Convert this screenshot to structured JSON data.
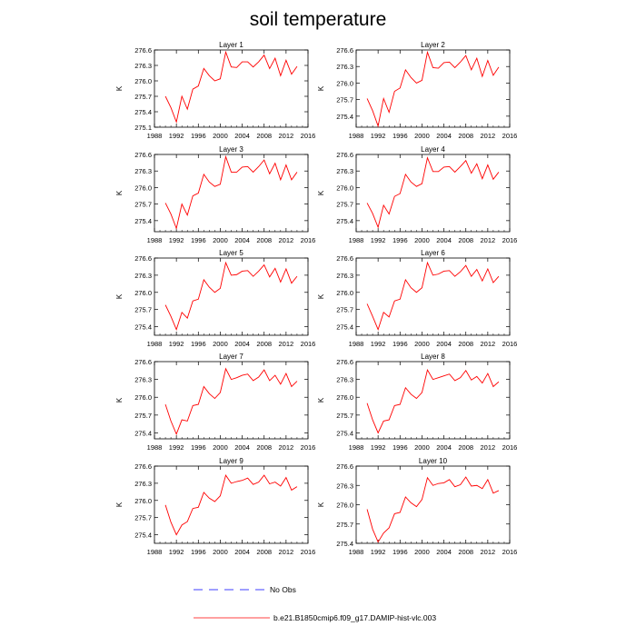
{
  "title": "soil temperature",
  "legend": {
    "obs_label": "No Obs",
    "model_label": "b.e21.B1850cmip6.f09_g17.DAMIP-hist-vlc.003",
    "obs_color": "#0000ff",
    "model_color": "#ff0000"
  },
  "chart_data": [
    {
      "type": "line",
      "title": "Layer 1",
      "ylabel": "K",
      "xlim": [
        1988,
        2016
      ],
      "ylim": [
        275.1,
        276.6
      ],
      "x_ticks": [
        "1988",
        "1992",
        "1996",
        "2000",
        "2004",
        "2008",
        "2012",
        "2016"
      ],
      "y_ticks": [
        "275.1",
        "275.4",
        "275.7",
        "276.0",
        "276.3",
        "276.6"
      ],
      "x": [
        1990,
        1991,
        1992,
        1993,
        1994,
        1995,
        1996,
        1997,
        1998,
        1999,
        2000,
        2001,
        2002,
        2003,
        2004,
        2005,
        2006,
        2007,
        2008,
        2009,
        2010,
        2011,
        2012,
        2013,
        2014
      ],
      "series": [
        {
          "name": "b.e21.B1850cmip6.f09_g17.DAMIP-hist-vlc.003",
          "values": [
            275.7,
            275.48,
            275.2,
            275.7,
            275.45,
            275.84,
            275.9,
            276.24,
            276.1,
            276.0,
            276.04,
            276.56,
            276.27,
            276.26,
            276.37,
            276.37,
            276.27,
            276.37,
            276.5,
            276.24,
            276.44,
            276.1,
            276.4,
            276.13,
            276.28
          ]
        }
      ]
    },
    {
      "type": "line",
      "title": "Layer 2",
      "ylabel": "K",
      "xlim": [
        1988,
        2016
      ],
      "ylim": [
        275.2,
        276.6
      ],
      "x_ticks": [
        "1988",
        "1992",
        "1996",
        "2000",
        "2004",
        "2008",
        "2012",
        "2016"
      ],
      "y_ticks": [
        "275.4",
        "275.7",
        "276.0",
        "276.3",
        "276.6"
      ],
      "x": [
        1990,
        1991,
        1992,
        1993,
        1994,
        1995,
        1996,
        1997,
        1998,
        1999,
        2000,
        2001,
        2002,
        2003,
        2004,
        2005,
        2006,
        2007,
        2008,
        2009,
        2010,
        2011,
        2012,
        2013,
        2014
      ],
      "series": [
        {
          "name": "b.e21.B1850cmip6.f09_g17.DAMIP-hist-vlc.003",
          "values": [
            275.72,
            275.5,
            275.22,
            275.72,
            275.47,
            275.85,
            275.91,
            276.24,
            276.1,
            276.0,
            276.05,
            276.56,
            276.28,
            276.27,
            276.37,
            276.38,
            276.28,
            276.38,
            276.5,
            276.24,
            276.45,
            276.12,
            276.41,
            276.14,
            276.29
          ]
        }
      ]
    },
    {
      "type": "line",
      "title": "Layer 3",
      "ylabel": "K",
      "xlim": [
        1988,
        2016
      ],
      "ylim": [
        275.2,
        276.6
      ],
      "x_ticks": [
        "1988",
        "1992",
        "1996",
        "2000",
        "2004",
        "2008",
        "2012",
        "2016"
      ],
      "y_ticks": [
        "275.4",
        "275.7",
        "276.0",
        "276.3",
        "276.6"
      ],
      "x": [
        1990,
        1991,
        1992,
        1993,
        1994,
        1995,
        1996,
        1997,
        1998,
        1999,
        2000,
        2001,
        2002,
        2003,
        2004,
        2005,
        2006,
        2007,
        2008,
        2009,
        2010,
        2011,
        2012,
        2013,
        2014
      ],
      "series": [
        {
          "name": "b.e21.B1850cmip6.f09_g17.DAMIP-hist-vlc.003",
          "values": [
            275.72,
            275.52,
            275.26,
            275.7,
            275.5,
            275.85,
            275.9,
            276.24,
            276.1,
            276.02,
            276.06,
            276.56,
            276.28,
            276.28,
            276.37,
            276.38,
            276.28,
            276.38,
            276.5,
            276.25,
            276.44,
            276.14,
            276.41,
            276.14,
            276.28
          ]
        }
      ]
    },
    {
      "type": "line",
      "title": "Layer 4",
      "ylabel": "K",
      "xlim": [
        1988,
        2016
      ],
      "ylim": [
        275.2,
        276.6
      ],
      "x_ticks": [
        "1988",
        "1992",
        "1996",
        "2000",
        "2004",
        "2008",
        "2012",
        "2016"
      ],
      "y_ticks": [
        "275.4",
        "275.7",
        "276.0",
        "276.3",
        "276.6"
      ],
      "x": [
        1990,
        1991,
        1992,
        1993,
        1994,
        1995,
        1996,
        1997,
        1998,
        1999,
        2000,
        2001,
        2002,
        2003,
        2004,
        2005,
        2006,
        2007,
        2008,
        2009,
        2010,
        2011,
        2012,
        2013,
        2014
      ],
      "series": [
        {
          "name": "b.e21.B1850cmip6.f09_g17.DAMIP-hist-vlc.003",
          "values": [
            275.72,
            275.53,
            275.28,
            275.68,
            275.52,
            275.84,
            275.89,
            276.24,
            276.1,
            276.02,
            276.07,
            276.54,
            276.29,
            276.29,
            276.37,
            276.38,
            276.28,
            276.38,
            276.49,
            276.26,
            276.43,
            276.16,
            276.41,
            276.15,
            276.28
          ]
        }
      ]
    },
    {
      "type": "line",
      "title": "Layer 5",
      "ylabel": "K",
      "xlim": [
        1988,
        2016
      ],
      "ylim": [
        275.25,
        276.6
      ],
      "x_ticks": [
        "1988",
        "1992",
        "1996",
        "2000",
        "2004",
        "2008",
        "2012",
        "2016"
      ],
      "y_ticks": [
        "275.4",
        "275.7",
        "276.0",
        "276.3",
        "276.6"
      ],
      "x": [
        1990,
        1991,
        1992,
        1993,
        1994,
        1995,
        1996,
        1997,
        1998,
        1999,
        2000,
        2001,
        2002,
        2003,
        2004,
        2005,
        2006,
        2007,
        2008,
        2009,
        2010,
        2011,
        2012,
        2013,
        2014
      ],
      "series": [
        {
          "name": "b.e21.B1850cmip6.f09_g17.DAMIP-hist-vlc.003",
          "values": [
            275.78,
            275.58,
            275.35,
            275.65,
            275.55,
            275.85,
            275.88,
            276.22,
            276.09,
            276.0,
            276.07,
            276.52,
            276.3,
            276.31,
            276.37,
            276.38,
            276.28,
            276.37,
            276.48,
            276.27,
            276.42,
            276.18,
            276.41,
            276.16,
            276.28
          ]
        }
      ]
    },
    {
      "type": "line",
      "title": "Layer 6",
      "ylabel": "K",
      "xlim": [
        1988,
        2016
      ],
      "ylim": [
        275.25,
        276.6
      ],
      "x_ticks": [
        "1988",
        "1992",
        "1996",
        "2000",
        "2004",
        "2008",
        "2012",
        "2016"
      ],
      "y_ticks": [
        "275.4",
        "275.7",
        "276.0",
        "276.3",
        "276.6"
      ],
      "x": [
        1990,
        1991,
        1992,
        1993,
        1994,
        1995,
        1996,
        1997,
        1998,
        1999,
        2000,
        2001,
        2002,
        2003,
        2004,
        2005,
        2006,
        2007,
        2008,
        2009,
        2010,
        2011,
        2012,
        2013,
        2014
      ],
      "series": [
        {
          "name": "b.e21.B1850cmip6.f09_g17.DAMIP-hist-vlc.003",
          "values": [
            275.8,
            275.58,
            275.35,
            275.65,
            275.57,
            275.85,
            275.88,
            276.22,
            276.08,
            276.0,
            276.08,
            276.52,
            276.3,
            276.32,
            276.37,
            276.38,
            276.28,
            276.36,
            276.47,
            276.28,
            276.4,
            276.2,
            276.41,
            276.17,
            276.28
          ]
        }
      ]
    },
    {
      "type": "line",
      "title": "Layer 7",
      "ylabel": "K",
      "xlim": [
        1988,
        2016
      ],
      "ylim": [
        275.3,
        276.6
      ],
      "x_ticks": [
        "1988",
        "1992",
        "1996",
        "2000",
        "2004",
        "2008",
        "2012",
        "2016"
      ],
      "y_ticks": [
        "275.4",
        "275.7",
        "276.0",
        "276.3",
        "276.6"
      ],
      "x": [
        1990,
        1991,
        1992,
        1993,
        1994,
        1995,
        1996,
        1997,
        1998,
        1999,
        2000,
        2001,
        2002,
        2003,
        2004,
        2005,
        2006,
        2007,
        2008,
        2009,
        2010,
        2011,
        2012,
        2013,
        2014
      ],
      "series": [
        {
          "name": "b.e21.B1850cmip6.f09_g17.DAMIP-hist-vlc.003",
          "values": [
            275.88,
            275.6,
            275.38,
            275.62,
            275.6,
            275.86,
            275.88,
            276.18,
            276.06,
            275.98,
            276.08,
            276.48,
            276.3,
            276.33,
            276.37,
            276.39,
            276.28,
            276.34,
            276.46,
            276.28,
            276.37,
            276.22,
            276.4,
            276.18,
            276.27
          ]
        }
      ]
    },
    {
      "type": "line",
      "title": "Layer 8",
      "ylabel": "K",
      "xlim": [
        1988,
        2016
      ],
      "ylim": [
        275.3,
        276.6
      ],
      "x_ticks": [
        "1988",
        "1992",
        "1996",
        "2000",
        "2004",
        "2008",
        "2012",
        "2016"
      ],
      "y_ticks": [
        "275.4",
        "275.7",
        "276.0",
        "276.3",
        "276.6"
      ],
      "x": [
        1990,
        1991,
        1992,
        1993,
        1994,
        1995,
        1996,
        1997,
        1998,
        1999,
        2000,
        2001,
        2002,
        2003,
        2004,
        2005,
        2006,
        2007,
        2008,
        2009,
        2010,
        2011,
        2012,
        2013,
        2014
      ],
      "series": [
        {
          "name": "b.e21.B1850cmip6.f09_g17.DAMIP-hist-vlc.003",
          "values": [
            275.9,
            275.62,
            275.4,
            275.6,
            275.62,
            275.86,
            275.88,
            276.16,
            276.05,
            275.98,
            276.08,
            276.46,
            276.3,
            276.33,
            276.36,
            276.39,
            276.28,
            276.33,
            276.45,
            276.29,
            276.35,
            276.24,
            276.4,
            276.18,
            276.26
          ]
        }
      ]
    },
    {
      "type": "line",
      "title": "Layer 9",
      "ylabel": "K",
      "xlim": [
        1988,
        2016
      ],
      "ylim": [
        275.25,
        276.6
      ],
      "x_ticks": [
        "1988",
        "1992",
        "1996",
        "2000",
        "2004",
        "2008",
        "2012",
        "2016"
      ],
      "y_ticks": [
        "275.4",
        "275.7",
        "276.0",
        "276.3",
        "276.6"
      ],
      "x": [
        1990,
        1991,
        1992,
        1993,
        1994,
        1995,
        1996,
        1997,
        1998,
        1999,
        2000,
        2001,
        2002,
        2003,
        2004,
        2005,
        2006,
        2007,
        2008,
        2009,
        2010,
        2011,
        2012,
        2013,
        2014
      ],
      "series": [
        {
          "name": "b.e21.B1850cmip6.f09_g17.DAMIP-hist-vlc.003",
          "values": [
            275.92,
            275.62,
            275.4,
            275.57,
            275.63,
            275.86,
            275.88,
            276.14,
            276.04,
            275.98,
            276.08,
            276.44,
            276.3,
            276.33,
            276.35,
            276.39,
            276.28,
            276.32,
            276.44,
            276.29,
            276.32,
            276.25,
            276.4,
            276.18,
            276.24
          ]
        }
      ]
    },
    {
      "type": "line",
      "title": "Layer 10",
      "ylabel": "K",
      "xlim": [
        1988,
        2016
      ],
      "ylim": [
        275.4,
        276.6
      ],
      "x_ticks": [
        "1988",
        "1992",
        "1996",
        "2000",
        "2004",
        "2008",
        "2012",
        "2016"
      ],
      "y_ticks": [
        "275.4",
        "275.7",
        "276.0",
        "276.3",
        "276.6"
      ],
      "x": [
        1990,
        1991,
        1992,
        1993,
        1994,
        1995,
        1996,
        1997,
        1998,
        1999,
        2000,
        2001,
        2002,
        2003,
        2004,
        2005,
        2006,
        2007,
        2008,
        2009,
        2010,
        2011,
        2012,
        2013,
        2014
      ],
      "series": [
        {
          "name": "b.e21.B1850cmip6.f09_g17.DAMIP-hist-vlc.003",
          "values": [
            275.93,
            275.62,
            275.42,
            275.56,
            275.64,
            275.86,
            275.88,
            276.12,
            276.03,
            275.97,
            276.08,
            276.42,
            276.3,
            276.33,
            276.34,
            276.39,
            276.28,
            276.31,
            276.43,
            276.29,
            276.3,
            276.25,
            276.39,
            276.18,
            276.22
          ]
        }
      ]
    }
  ]
}
